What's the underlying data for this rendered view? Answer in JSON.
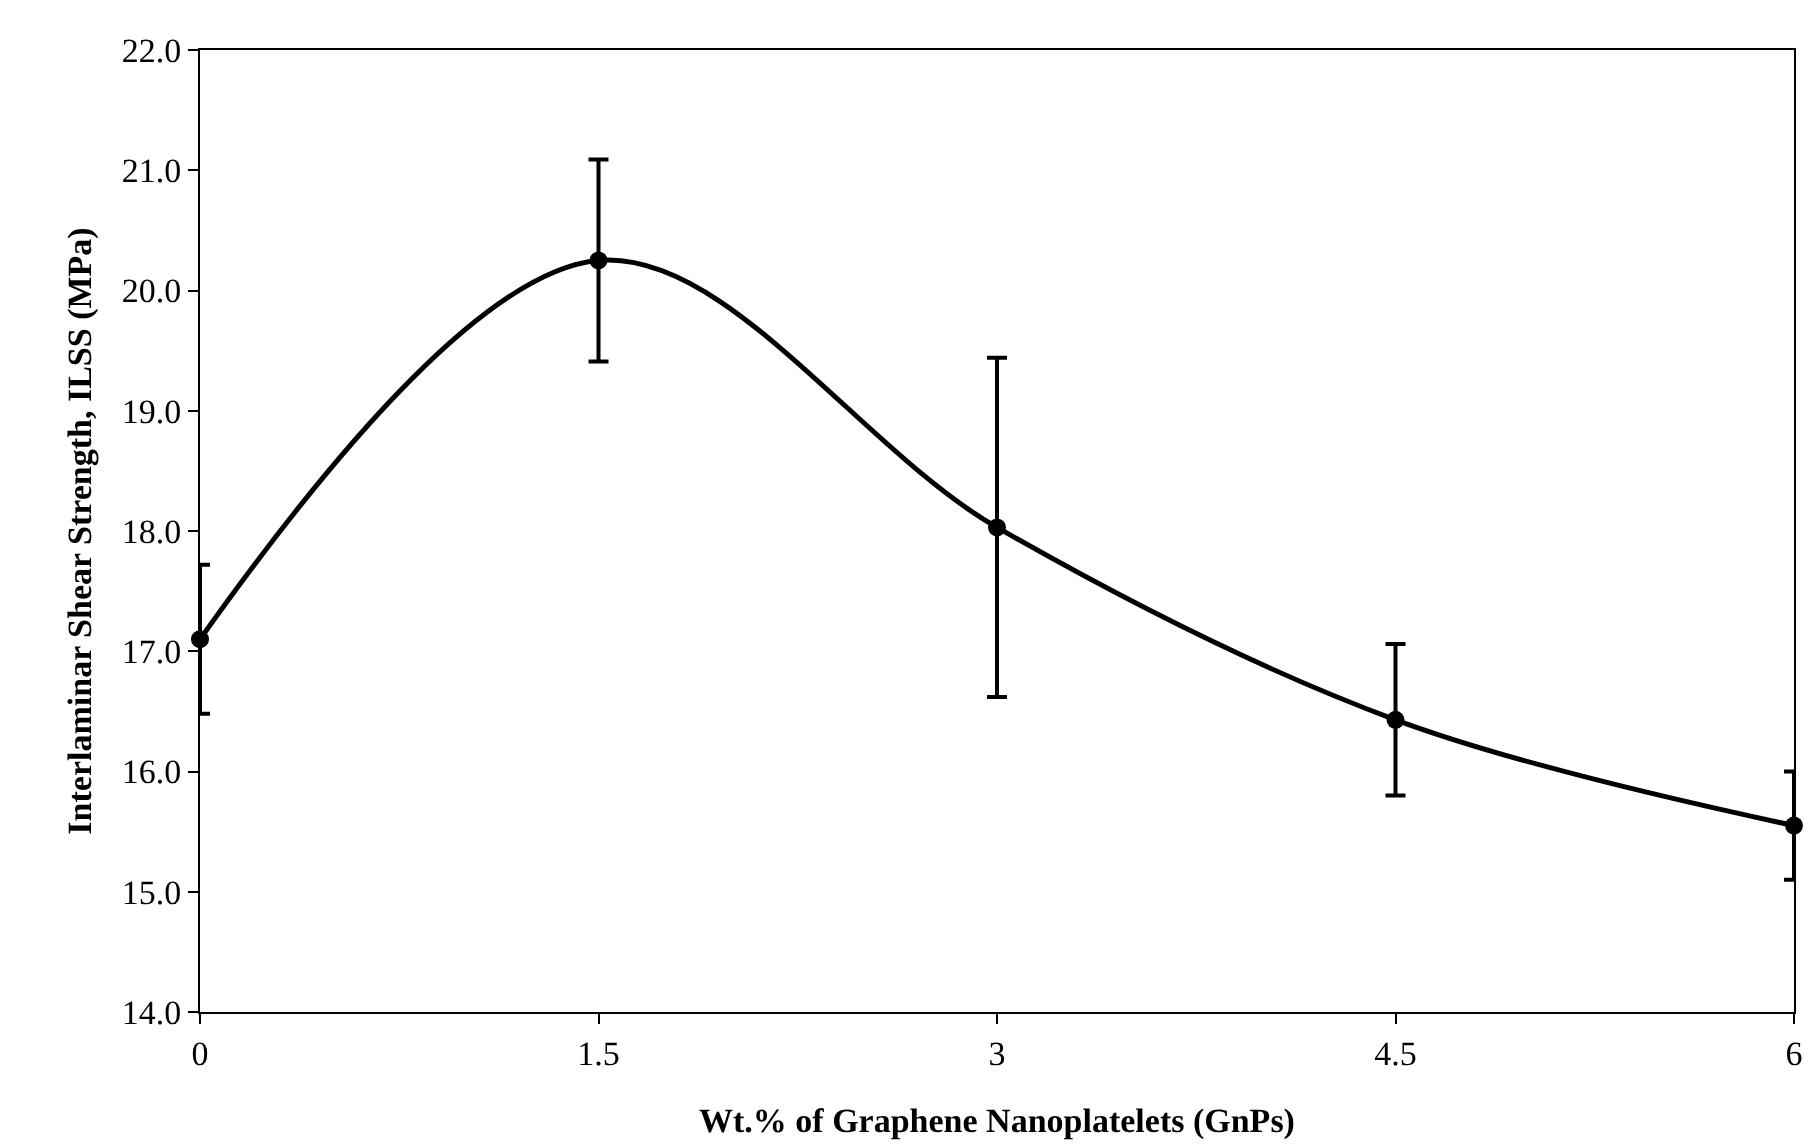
{
  "chart_data": {
    "type": "line",
    "xlabel": "Wt.% of Graphene Nanoplatelets (GnPs)",
    "ylabel": "Interlaminar Shear Strength, ILSS (MPa)",
    "x": [
      0,
      1.5,
      3,
      4.5,
      6
    ],
    "series": [
      {
        "color": "#000000",
        "values": [
          17.1,
          20.25,
          18.03,
          16.43,
          15.55
        ],
        "errors": [
          0.62,
          0.84,
          1.41,
          0.63,
          0.45
        ]
      }
    ],
    "xlim": [
      0,
      6
    ],
    "xticks": [
      0,
      1.5,
      3,
      4.5,
      6
    ],
    "ylim": [
      14,
      22
    ],
    "yticks": [
      {
        "value": 14,
        "label": "14.0"
      },
      {
        "value": 15,
        "label": "15.0"
      },
      {
        "value": 16,
        "label": "16.0"
      },
      {
        "value": 17,
        "label": "17.0"
      },
      {
        "value": 18,
        "label": "18.0"
      },
      {
        "value": 19,
        "label": "19.0"
      },
      {
        "value": 20,
        "label": "20.0"
      },
      {
        "value": 21,
        "label": "21.0"
      },
      {
        "value": 22,
        "label": "22.0"
      }
    ],
    "marker": "circle",
    "line_style": "solid"
  }
}
